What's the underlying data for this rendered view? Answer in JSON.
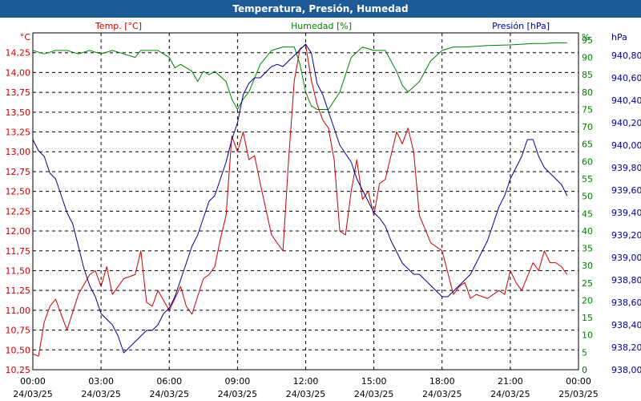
{
  "title": "Temperatura, Presión, Humedad",
  "colors": {
    "title_bg": "#1e5a96",
    "temperature": "#c80000",
    "humidity": "#008000",
    "pressure": "#000096",
    "grid": "#000000"
  },
  "chart_data": {
    "type": "line",
    "title": "Temperatura, Presión, Humedad",
    "x_unit": "hours since 24/03/25 00:00",
    "x_ticks": [
      {
        "time": "00:00",
        "date": "24/03/25",
        "value": 0
      },
      {
        "time": "03:00",
        "date": "24/03/25",
        "value": 3
      },
      {
        "time": "06:00",
        "date": "24/03/25",
        "value": 6
      },
      {
        "time": "09:00",
        "date": "24/03/25",
        "value": 9
      },
      {
        "time": "12:00",
        "date": "24/03/25",
        "value": 12
      },
      {
        "time": "15:00",
        "date": "24/03/25",
        "value": 15
      },
      {
        "time": "18:00",
        "date": "24/03/25",
        "value": 18
      },
      {
        "time": "21:00",
        "date": "24/03/25",
        "value": 21
      },
      {
        "time": "00:00",
        "date": "25/03/25",
        "value": 24
      }
    ],
    "xlim": [
      0,
      24
    ],
    "axes": {
      "temperature": {
        "label": "Temp. [°C]",
        "unit": "°C",
        "ylim": [
          10.25,
          14.5
        ],
        "ticks": [
          "10,25",
          "10,50",
          "10,75",
          "11,00",
          "11,25",
          "11,50",
          "11,75",
          "12,00",
          "12,25",
          "12,50",
          "12,75",
          "13,00",
          "13,25",
          "13,50",
          "13,75",
          "14,00",
          "14,25"
        ]
      },
      "humidity": {
        "label": "Humedad [%]",
        "unit": "%",
        "ylim": [
          0,
          97.06
        ],
        "ticks": [
          "0",
          "5",
          "10",
          "15",
          "20",
          "25",
          "30",
          "35",
          "40",
          "45",
          "50",
          "55",
          "60",
          "65",
          "70",
          "75",
          "80",
          "85",
          "90",
          "95"
        ]
      },
      "pressure": {
        "label": "Presión [hPa]",
        "unit": "hPa",
        "ylim": [
          938.0,
          941.0
        ],
        "ticks": [
          "938,00",
          "938,20",
          "938,40",
          "938,60",
          "938,80",
          "939,00",
          "939,20",
          "939,40",
          "939,60",
          "939,80",
          "940,00",
          "940,20",
          "940,40",
          "940,60",
          "940,80"
        ]
      }
    },
    "series": [
      {
        "name": "Temp. [°C]",
        "axis": "temperature",
        "x": [
          0,
          0.25,
          0.5,
          0.75,
          1,
          1.5,
          2,
          2.5,
          2.75,
          3,
          3.25,
          3.5,
          4,
          4.5,
          4.75,
          5,
          5.25,
          5.5,
          6,
          6.5,
          6.75,
          7,
          7.5,
          7.75,
          8,
          8.25,
          8.5,
          8.75,
          9,
          9.25,
          9.5,
          9.75,
          10,
          10.5,
          11,
          11.25,
          11.5,
          11.75,
          12,
          12.25,
          12.5,
          12.75,
          13,
          13.25,
          13.5,
          13.75,
          14,
          14.25,
          14.5,
          14.75,
          15,
          15.25,
          15.5,
          16,
          16.25,
          16.5,
          16.75,
          17,
          17.5,
          18,
          18.5,
          18.75,
          19,
          19.25,
          19.5,
          20,
          20.5,
          20.75,
          21,
          21.25,
          21.5,
          22,
          22.25,
          22.5,
          22.75,
          23,
          23.25,
          23.5
        ],
        "values": [
          10.45,
          10.42,
          10.85,
          11.05,
          11.14,
          10.75,
          11.2,
          11.45,
          11.5,
          11.3,
          11.55,
          11.2,
          11.4,
          11.45,
          11.75,
          11.1,
          11.05,
          11.25,
          11.0,
          11.3,
          11.05,
          10.95,
          11.4,
          11.45,
          11.55,
          11.9,
          12.2,
          13.2,
          13.0,
          13.25,
          12.9,
          12.95,
          12.6,
          11.95,
          11.75,
          12.9,
          13.9,
          14.3,
          14.35,
          13.9,
          13.6,
          13.4,
          13.3,
          12.9,
          12.0,
          11.95,
          12.5,
          12.9,
          12.4,
          12.5,
          12.2,
          12.6,
          12.65,
          13.25,
          13.1,
          13.3,
          13.0,
          12.2,
          11.85,
          11.75,
          11.2,
          11.3,
          11.35,
          11.15,
          11.2,
          11.15,
          11.25,
          11.2,
          11.5,
          11.35,
          11.25,
          11.6,
          11.5,
          11.75,
          11.6,
          11.6,
          11.55,
          11.45
        ]
      },
      {
        "name": "Humedad [%]",
        "axis": "humidity",
        "x": [
          0,
          0.5,
          1,
          1.5,
          2,
          2.5,
          3,
          3.5,
          4,
          4.5,
          4.75,
          5,
          5.5,
          6,
          6.25,
          6.5,
          7,
          7.25,
          7.5,
          7.75,
          8,
          8.5,
          8.75,
          9,
          9.25,
          9.5,
          10,
          10.5,
          11,
          11.5,
          11.75,
          12,
          12.25,
          12.5,
          13,
          13.5,
          14,
          14.5,
          15,
          15.5,
          16,
          16.25,
          16.5,
          17,
          17.5,
          18,
          18.5,
          19,
          19.5,
          20,
          20.5,
          21,
          21.5,
          22,
          22.5,
          23,
          23.5
        ],
        "values": [
          92,
          91,
          92,
          92,
          91,
          92,
          91,
          92,
          91,
          90,
          92,
          92,
          92,
          90,
          87,
          88,
          86,
          83,
          86,
          85,
          86,
          83,
          78,
          75,
          78,
          80,
          88,
          92,
          93,
          93,
          88,
          80,
          76,
          75,
          75,
          80,
          90,
          93,
          92,
          92,
          86,
          82,
          80,
          83,
          89,
          92,
          93,
          93,
          93.2,
          93.4,
          93.5,
          93.6,
          93.8,
          94,
          94,
          94.2,
          94.2
        ]
      },
      {
        "name": "Presión [hPa]",
        "axis": "pressure",
        "x": [
          0,
          0.25,
          0.5,
          0.75,
          1,
          1.25,
          1.5,
          1.75,
          2,
          2.25,
          2.5,
          2.75,
          3,
          3.25,
          3.5,
          3.75,
          4,
          4.25,
          4.5,
          4.75,
          5,
          5.25,
          5.5,
          5.75,
          6,
          6.25,
          6.5,
          6.75,
          7,
          7.25,
          7.5,
          7.75,
          8,
          8.25,
          8.5,
          8.75,
          9,
          9.25,
          9.5,
          9.75,
          10,
          10.25,
          10.5,
          10.75,
          11,
          11.25,
          11.5,
          11.75,
          12,
          12.25,
          12.5,
          12.75,
          13,
          13.5,
          14,
          14.25,
          14.5,
          14.75,
          15,
          15.25,
          15.5,
          15.75,
          16,
          16.25,
          16.5,
          16.75,
          17,
          17.25,
          17.5,
          17.75,
          18,
          18.25,
          18.5,
          18.75,
          19,
          19.25,
          19.5,
          19.75,
          20,
          20.25,
          20.5,
          20.75,
          21,
          21.25,
          21.5,
          21.75,
          22,
          22.25,
          22.5,
          22.75,
          23,
          23.25,
          23.5
        ],
        "values": [
          940.05,
          939.95,
          939.9,
          939.75,
          939.7,
          939.55,
          939.4,
          939.3,
          939.1,
          938.9,
          938.75,
          938.65,
          938.5,
          938.45,
          938.4,
          938.3,
          938.15,
          938.2,
          938.25,
          938.3,
          938.35,
          938.35,
          938.4,
          938.5,
          938.55,
          938.65,
          938.8,
          938.95,
          939.1,
          939.2,
          939.35,
          939.5,
          939.55,
          939.7,
          939.85,
          940.05,
          940.2,
          940.45,
          940.55,
          940.6,
          940.6,
          940.65,
          940.7,
          940.72,
          940.7,
          940.75,
          940.8,
          940.85,
          940.9,
          940.82,
          940.55,
          940.45,
          940.3,
          940.0,
          939.85,
          939.7,
          939.6,
          939.5,
          939.4,
          939.35,
          939.28,
          939.15,
          939.05,
          938.95,
          938.9,
          938.85,
          938.85,
          938.8,
          938.75,
          938.7,
          938.65,
          938.65,
          938.7,
          938.75,
          938.8,
          938.85,
          938.95,
          939.05,
          939.15,
          939.3,
          939.45,
          939.55,
          939.7,
          939.8,
          939.9,
          940.05,
          940.05,
          939.9,
          939.8,
          939.75,
          939.7,
          939.65,
          939.55
        ]
      }
    ]
  }
}
